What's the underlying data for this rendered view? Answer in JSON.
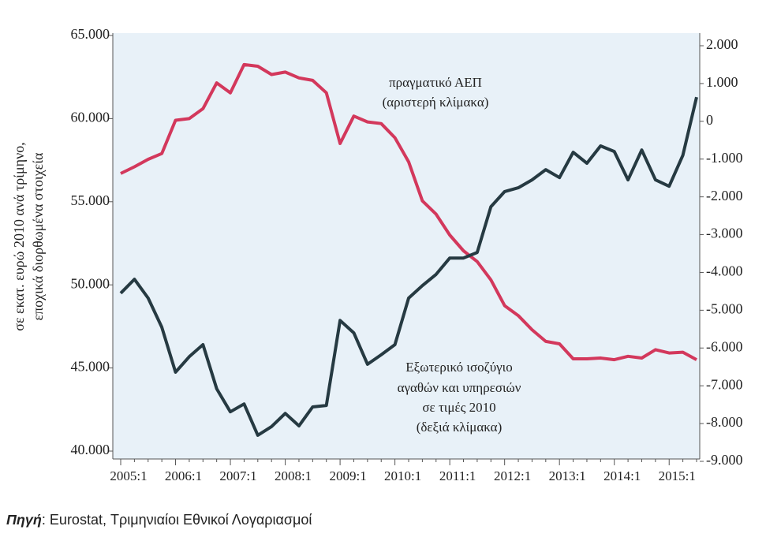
{
  "chart_data": {
    "type": "line",
    "y_label_lines": [
      "σε εκατ. ευρώ 2010 ανά τρίμηνο,",
      "εποχικά διορθωμένα στοιχεία"
    ],
    "annotations": [
      {
        "lines": [
          "πραγματικό ΑΕΠ",
          "(αριστερή κλίμακα)"
        ]
      },
      {
        "lines": [
          "Εξωτερικό ισοζύγιο",
          "αγαθών και υπηρεσιών",
          "σε τιμές 2010",
          "(δεξιά κλίμακα)"
        ]
      }
    ],
    "source_label": "Πηγή",
    "source": ": Eurostat, Τριμηνιαίοι Εθνικοί Λογαριασμοί",
    "categories": [
      "2005:1",
      null,
      null,
      null,
      "2006:1",
      null,
      null,
      null,
      "2007:1",
      null,
      null,
      null,
      "2008:1",
      null,
      null,
      null,
      "2009:1",
      null,
      null,
      null,
      "2010:1",
      null,
      null,
      null,
      "2011:1",
      null,
      null,
      null,
      "2012:1",
      null,
      null,
      null,
      "2013:1",
      null,
      null,
      null,
      "2014:1",
      null,
      null,
      null,
      "2015:1",
      null,
      null
    ],
    "series": [
      {
        "name": "πραγματικό ΑΕΠ",
        "color": "#d3385c",
        "axis": "y",
        "values": [
          56700,
          57100,
          57550,
          57900,
          59900,
          60000,
          60600,
          62150,
          61550,
          63250,
          63150,
          62650,
          62800,
          62450,
          62300,
          61550,
          58500,
          60150,
          59800,
          59700,
          58850,
          57400,
          55050,
          54250,
          53000,
          52050,
          51400,
          50300,
          48750,
          48150,
          47300,
          46600,
          46450,
          45550,
          45550,
          45600,
          45500,
          45700,
          45600,
          46100,
          45900,
          45950,
          45500
        ]
      },
      {
        "name": "Εξωτερικό ισοζύγιο",
        "color": "#263a42",
        "axis": "y2",
        "values": [
          -4550,
          -4180,
          -4680,
          -5450,
          -6640,
          -6230,
          -5910,
          -7080,
          -7690,
          -7480,
          -8310,
          -8080,
          -7730,
          -8060,
          -7560,
          -7520,
          -5270,
          -5600,
          -6430,
          -6180,
          -5910,
          -4680,
          -4350,
          -4050,
          -3620,
          -3620,
          -3470,
          -2260,
          -1860,
          -1760,
          -1550,
          -1280,
          -1490,
          -820,
          -1110,
          -650,
          -800,
          -1550,
          -760,
          -1550,
          -1720,
          -900,
          640
        ]
      }
    ],
    "ylim": [
      40000,
      65000
    ],
    "yticks": [
      {
        "value": 40000,
        "label": "40.000"
      },
      {
        "value": 45000,
        "label": "45.000"
      },
      {
        "value": 50000,
        "label": "50.000"
      },
      {
        "value": 55000,
        "label": "55.000"
      },
      {
        "value": 60000,
        "label": "60.000"
      },
      {
        "value": 65000,
        "label": "65.000"
      }
    ],
    "y2lim": [
      -9000,
      2000
    ],
    "y2ticks": [
      {
        "value": -9000,
        "label": "-9.000"
      },
      {
        "value": -8000,
        "label": "-8.000"
      },
      {
        "value": -7000,
        "label": "-7.000"
      },
      {
        "value": -6000,
        "label": "-6.000"
      },
      {
        "value": -5000,
        "label": "-5.000"
      },
      {
        "value": -4000,
        "label": "-4.000"
      },
      {
        "value": -3000,
        "label": "-3.000"
      },
      {
        "value": -2000,
        "label": "-2.000"
      },
      {
        "value": -1000,
        "label": "-1.000"
      },
      0,
      {
        "value": 1000,
        "label": "1.000"
      },
      {
        "value": 2000,
        "label": "2.000"
      }
    ],
    "grid": false
  }
}
